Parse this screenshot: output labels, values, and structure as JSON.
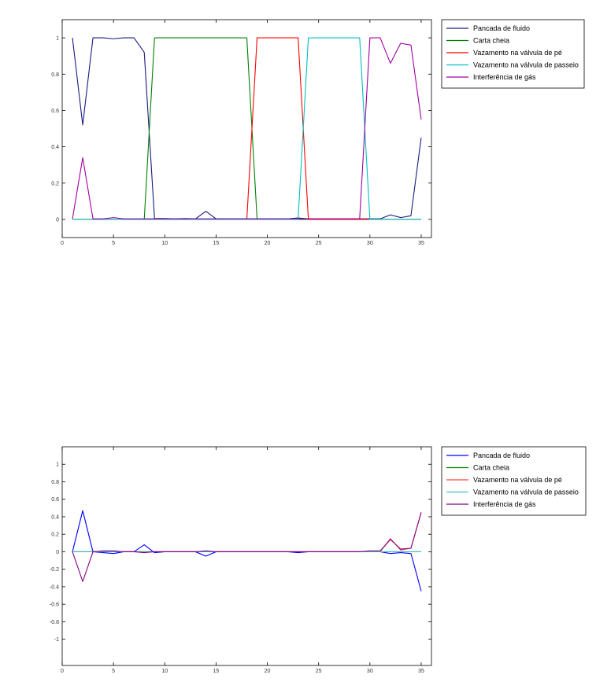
{
  "chart_data": [
    {
      "type": "line",
      "title": "",
      "xlabel": "",
      "ylabel": "",
      "xlim": [
        0,
        36
      ],
      "ylim": [
        -0.1,
        1.1
      ],
      "xticks": [
        0,
        5,
        10,
        15,
        20,
        25,
        30,
        35
      ],
      "yticks": [
        0,
        0.2,
        0.4,
        0.6,
        0.8,
        1
      ],
      "ytick_labels": [
        "0",
        "0.2",
        "0.4",
        "0.6",
        "0.8",
        "1"
      ],
      "grid": false,
      "legend_position": "outside-right-top",
      "x": [
        1,
        2,
        3,
        4,
        5,
        6,
        7,
        8,
        9,
        10,
        11,
        12,
        13,
        14,
        15,
        16,
        17,
        18,
        19,
        20,
        21,
        22,
        23,
        24,
        25,
        26,
        27,
        28,
        29,
        30,
        31,
        32,
        33,
        34,
        35
      ],
      "series": [
        {
          "name": "Pancada de fluido",
          "color": "#1a1a80",
          "values": [
            1.0,
            0.52,
            1.0,
            1.0,
            0.995,
            1.0,
            1.0,
            0.92,
            0.005,
            0.005,
            0.003,
            0.005,
            0.003,
            0.045,
            0.003,
            0.003,
            0.003,
            0.003,
            0.003,
            0.003,
            0.003,
            0.003,
            0.008,
            0.003,
            0.003,
            0.003,
            0.003,
            0.003,
            0.003,
            0.003,
            0.003,
            0.025,
            0.01,
            0.02,
            0.45
          ]
        },
        {
          "name": "Carta cheia",
          "color": "#008000",
          "values": [
            0,
            0,
            0,
            0,
            0,
            0,
            0,
            0,
            1.0,
            1.0,
            1.0,
            1.0,
            1.0,
            1.0,
            1.0,
            1.0,
            1.0,
            1.0,
            0,
            0,
            0,
            0,
            0,
            0,
            0,
            0,
            0,
            0,
            0,
            0,
            0,
            0,
            0,
            0,
            0
          ]
        },
        {
          "name": "Vazamento na válvula de pé",
          "color": "#ff0000",
          "values": [
            0,
            0,
            0,
            0,
            0,
            0,
            0,
            0,
            0,
            0,
            0,
            0,
            0,
            0,
            0,
            0,
            0,
            0,
            1.0,
            1.0,
            1.0,
            1.0,
            1.0,
            0,
            0,
            0,
            0,
            0,
            0,
            0,
            0,
            0,
            0,
            0,
            0
          ]
        },
        {
          "name": "Vazamento na válvula de passeio",
          "color": "#00c0c0",
          "values": [
            0,
            0,
            0,
            0,
            0,
            0,
            0,
            0,
            0,
            0,
            0,
            0,
            0,
            0,
            0,
            0,
            0,
            0,
            0,
            0,
            0,
            0,
            0,
            1.0,
            1.0,
            1.0,
            1.0,
            1.0,
            1.0,
            0,
            0,
            0,
            0,
            0,
            0
          ]
        },
        {
          "name": "Interferência de gás",
          "color": "#a000a0",
          "values": [
            0.003,
            0.34,
            0.003,
            0.003,
            0.01,
            0.003,
            0.003,
            0.003,
            0.003,
            0.003,
            0.003,
            0.003,
            0.003,
            0.003,
            0.003,
            0.003,
            0.003,
            0.003,
            0.003,
            0.003,
            0.003,
            0.003,
            0.003,
            0.003,
            0.003,
            0.003,
            0.003,
            0.003,
            0.003,
            1.0,
            1.0,
            0.86,
            0.97,
            0.96,
            0.55
          ]
        }
      ]
    },
    {
      "type": "line",
      "title": "",
      "xlabel": "",
      "ylabel": "",
      "xlim": [
        0,
        36
      ],
      "ylim": [
        -1.3,
        1.2
      ],
      "xticks": [
        0,
        5,
        10,
        15,
        20,
        25,
        30,
        35
      ],
      "yticks": [
        -1,
        -0.8,
        -0.6,
        -0.4,
        -0.2,
        0,
        0.2,
        0.4,
        0.6,
        0.8,
        1
      ],
      "ytick_labels": [
        "-1",
        "-0.8",
        "-0.6",
        "-0.4",
        "-0.2",
        "0",
        "0.2",
        "0.4",
        "0.6",
        "0.8",
        "1"
      ],
      "grid": false,
      "legend_position": "outside-right-top",
      "x": [
        1,
        2,
        3,
        4,
        5,
        6,
        7,
        8,
        9,
        10,
        11,
        12,
        13,
        14,
        15,
        16,
        17,
        18,
        19,
        20,
        21,
        22,
        23,
        24,
        25,
        26,
        27,
        28,
        29,
        30,
        31,
        32,
        33,
        34,
        35
      ],
      "series": [
        {
          "name": "Pancada de fluido",
          "color": "#0000ff",
          "values": [
            0,
            0.47,
            0,
            -0.01,
            -0.02,
            0,
            0,
            0.08,
            -0.01,
            0,
            0,
            0,
            0,
            -0.05,
            0,
            0,
            0,
            0,
            0,
            0,
            0,
            0,
            -0.01,
            0,
            0,
            0,
            0,
            0,
            0,
            0,
            0,
            -0.02,
            -0.01,
            -0.02,
            -0.45
          ]
        },
        {
          "name": "Carta cheia",
          "color": "#008000",
          "values": [
            0,
            0,
            0,
            0,
            0,
            0,
            0,
            0,
            0,
            0,
            0,
            0,
            0,
            0,
            0,
            0,
            0,
            0,
            0,
            0,
            0,
            0,
            0,
            0,
            0,
            0,
            0,
            0,
            0,
            0,
            0,
            0,
            0,
            0,
            0
          ]
        },
        {
          "name": "Vazamento na válvula de pé",
          "color": "#ff4040",
          "values": [
            0,
            0,
            0,
            0,
            0,
            0,
            0,
            0,
            0,
            0,
            0,
            0,
            0,
            0,
            0,
            0,
            0,
            0,
            0,
            0,
            0,
            0,
            0,
            0,
            0,
            0,
            0,
            0,
            0,
            0,
            0,
            0.15,
            0.02,
            0.04,
            0.45
          ]
        },
        {
          "name": "Vazamento na válvula de passeio",
          "color": "#40c0c0",
          "values": [
            0,
            0,
            0,
            0,
            0,
            0,
            0,
            0,
            0,
            0,
            0,
            0,
            0,
            0,
            0,
            0,
            0,
            0,
            0,
            0,
            0,
            0,
            0,
            0,
            0,
            0,
            0,
            0,
            0,
            0,
            0,
            0,
            0,
            0,
            0
          ]
        },
        {
          "name": "Interferência de gás",
          "color": "#800080",
          "values": [
            0,
            -0.34,
            0,
            0.01,
            0.01,
            0,
            0,
            -0.01,
            0,
            0,
            0,
            0,
            0,
            0.01,
            0,
            0,
            0,
            0,
            0,
            0,
            0,
            0,
            0,
            0,
            0,
            0,
            0,
            0,
            0,
            0.01,
            0.01,
            0.14,
            0.03,
            0.04,
            0.45
          ]
        }
      ]
    }
  ]
}
